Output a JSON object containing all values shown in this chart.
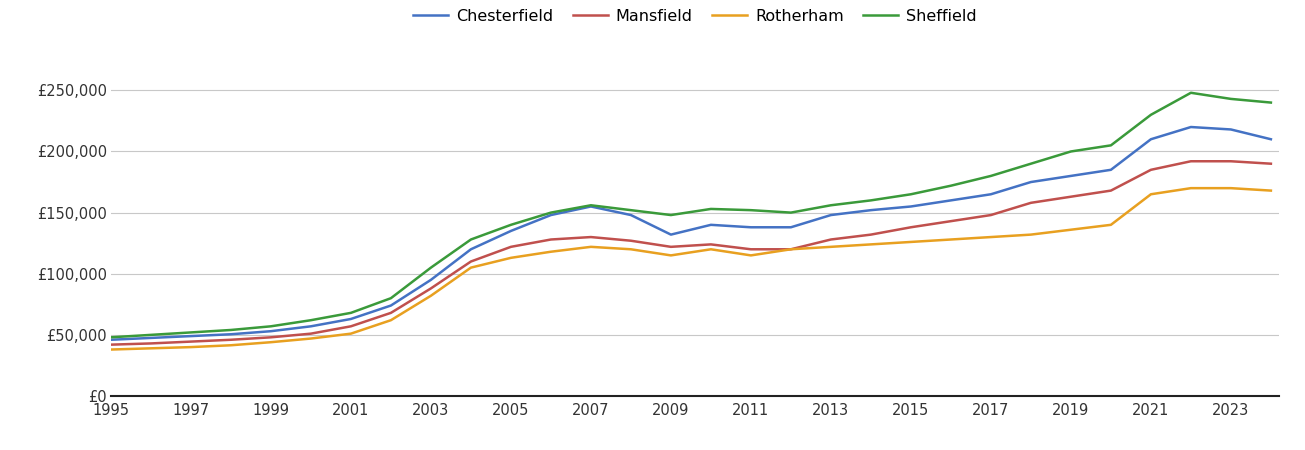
{
  "years": [
    1995,
    1996,
    1997,
    1998,
    1999,
    2000,
    2001,
    2002,
    2003,
    2004,
    2005,
    2006,
    2007,
    2008,
    2009,
    2010,
    2011,
    2012,
    2013,
    2014,
    2015,
    2016,
    2017,
    2018,
    2019,
    2020,
    2021,
    2022,
    2023,
    2024
  ],
  "chesterfield": [
    46000,
    47500,
    49000,
    50500,
    53000,
    57000,
    63000,
    74000,
    95000,
    120000,
    135000,
    148000,
    155000,
    148000,
    132000,
    140000,
    138000,
    138000,
    148000,
    152000,
    155000,
    160000,
    165000,
    175000,
    180000,
    185000,
    210000,
    220000,
    218000,
    210000
  ],
  "mansfield": [
    42000,
    43000,
    44500,
    46000,
    48000,
    51000,
    57000,
    68000,
    88000,
    110000,
    122000,
    128000,
    130000,
    127000,
    122000,
    124000,
    120000,
    120000,
    128000,
    132000,
    138000,
    143000,
    148000,
    158000,
    163000,
    168000,
    185000,
    192000,
    192000,
    190000
  ],
  "rotherham": [
    38000,
    39000,
    40000,
    41500,
    44000,
    47000,
    51000,
    62000,
    82000,
    105000,
    113000,
    118000,
    122000,
    120000,
    115000,
    120000,
    115000,
    120000,
    122000,
    124000,
    126000,
    128000,
    130000,
    132000,
    136000,
    140000,
    165000,
    170000,
    170000,
    168000
  ],
  "sheffield": [
    48000,
    50000,
    52000,
    54000,
    57000,
    62000,
    68000,
    80000,
    105000,
    128000,
    140000,
    150000,
    156000,
    152000,
    148000,
    153000,
    152000,
    150000,
    156000,
    160000,
    165000,
    172000,
    180000,
    190000,
    200000,
    205000,
    230000,
    248000,
    243000,
    240000
  ],
  "colors": {
    "chesterfield": "#4472C4",
    "mansfield": "#C0504D",
    "rotherham": "#E8A020",
    "sheffield": "#3A9A3A"
  },
  "ylim": [
    0,
    265000
  ],
  "yticks": [
    0,
    50000,
    100000,
    150000,
    200000,
    250000
  ],
  "xticks": [
    1995,
    1997,
    1999,
    2001,
    2003,
    2005,
    2007,
    2009,
    2011,
    2013,
    2015,
    2017,
    2019,
    2021,
    2023
  ],
  "legend_labels": [
    "Chesterfield",
    "Mansfield",
    "Rotherham",
    "Sheffield"
  ],
  "background_color": "#ffffff",
  "grid_color": "#c8c8c8",
  "line_width": 1.8,
  "tick_labelsize": 10.5,
  "legend_fontsize": 11.5
}
